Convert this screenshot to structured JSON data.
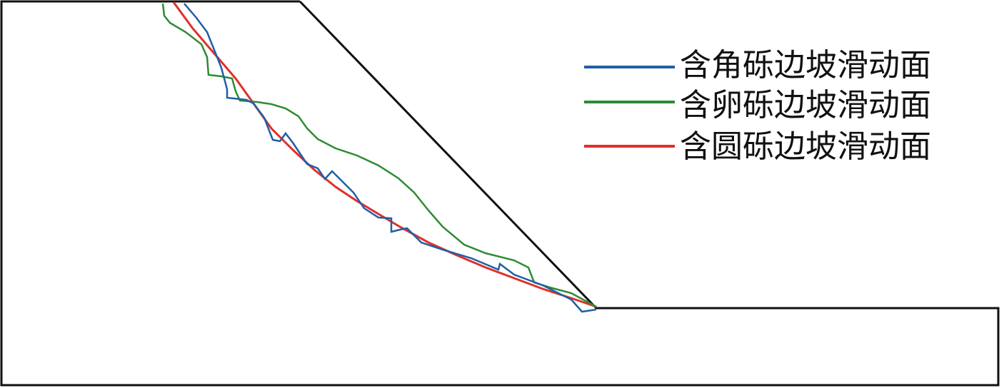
{
  "legend": {
    "items": [
      {
        "label": "含角砾边坡滑动面",
        "color": "#1f5fa6"
      },
      {
        "label": "含卵砾边坡滑动面",
        "color": "#2e8b34"
      },
      {
        "label": "含圆砾边坡滑动面",
        "color": "#e0302a"
      }
    ]
  },
  "colors": {
    "slope_outline": "#111111"
  }
}
